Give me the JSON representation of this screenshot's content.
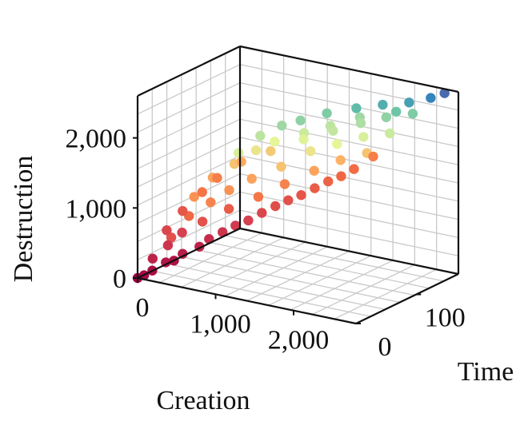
{
  "chart_data": {
    "type": "scatter",
    "projection": "3d",
    "title": "",
    "xlabel": "Creation",
    "ylabel": "Time",
    "zlabel": "Destruction",
    "xlim": [
      0,
      2800
    ],
    "ylim": [
      0,
      170
    ],
    "zlim": [
      0,
      2600
    ],
    "xticks": [
      {
        "value": 0,
        "label": "0"
      },
      {
        "value": 1000,
        "label": "1,000"
      },
      {
        "value": 2000,
        "label": "2,000"
      }
    ],
    "yticks": [
      {
        "value": 0,
        "label": "0"
      },
      {
        "value": 100,
        "label": "100"
      }
    ],
    "zticks": [
      {
        "value": 0,
        "label": "0"
      },
      {
        "value": 1000,
        "label": "1,000"
      },
      {
        "value": 2000,
        "label": "2,000"
      }
    ],
    "grid": true,
    "legend": "none",
    "colormap": "spectral (time: low = dark red, high = dark blue)",
    "colormap_stops": [
      "#9e0142",
      "#d53e4f",
      "#f46d43",
      "#fdae61",
      "#e6f598",
      "#abdda4",
      "#66c2a5",
      "#3288bd",
      "#5e4fa2"
    ],
    "series": [
      {
        "points": [
          [
            0,
            0,
            0
          ],
          [
            150,
            5,
            120
          ],
          [
            300,
            8,
            260
          ],
          [
            500,
            10,
            420
          ],
          [
            800,
            15,
            680
          ],
          [
            1100,
            20,
            920
          ],
          [
            1400,
            25,
            1150
          ],
          [
            1700,
            30,
            1380
          ],
          [
            2000,
            35,
            1600
          ],
          [
            2300,
            40,
            1820
          ],
          [
            100,
            12,
            250
          ],
          [
            250,
            18,
            450
          ],
          [
            400,
            22,
            650
          ],
          [
            600,
            30,
            820
          ],
          [
            900,
            35,
            1050
          ],
          [
            1200,
            45,
            1250
          ],
          [
            1500,
            50,
            1480
          ],
          [
            1800,
            60,
            1700
          ],
          [
            2100,
            65,
            1900
          ],
          [
            2400,
            70,
            2050
          ],
          [
            200,
            30,
            500
          ],
          [
            350,
            40,
            800
          ],
          [
            550,
            50,
            1000
          ],
          [
            750,
            55,
            1200
          ],
          [
            1000,
            60,
            1400
          ],
          [
            1300,
            70,
            1600
          ],
          [
            1600,
            80,
            1850
          ],
          [
            1900,
            85,
            2000
          ],
          [
            2200,
            90,
            2150
          ],
          [
            2500,
            95,
            2250
          ],
          [
            300,
            55,
            1000
          ],
          [
            500,
            60,
            1300
          ],
          [
            700,
            70,
            1500
          ],
          [
            900,
            80,
            1700
          ],
          [
            1100,
            85,
            1850
          ],
          [
            1400,
            95,
            2000
          ],
          [
            1700,
            100,
            2150
          ],
          [
            2000,
            110,
            2300
          ],
          [
            2300,
            115,
            2350
          ],
          [
            2600,
            120,
            2450
          ],
          [
            600,
            90,
            1550
          ],
          [
            800,
            100,
            1800
          ],
          [
            1000,
            110,
            1950
          ],
          [
            1200,
            115,
            2050
          ],
          [
            1500,
            120,
            2200
          ],
          [
            1800,
            130,
            2300
          ],
          [
            2100,
            135,
            2400
          ],
          [
            2400,
            140,
            2480
          ],
          [
            2600,
            150,
            2550
          ],
          [
            2700,
            160,
            2600
          ],
          [
            60,
            3,
            40
          ],
          [
            420,
            6,
            320
          ],
          [
            700,
            12,
            560
          ],
          [
            950,
            18,
            800
          ],
          [
            1250,
            22,
            1020
          ],
          [
            1550,
            28,
            1270
          ],
          [
            1850,
            32,
            1480
          ],
          [
            2150,
            38,
            1720
          ],
          [
            2450,
            42,
            1950
          ],
          [
            2650,
            48,
            2150
          ],
          [
            180,
            25,
            620
          ],
          [
            330,
            32,
            900
          ],
          [
            480,
            45,
            1150
          ],
          [
            650,
            48,
            1380
          ],
          [
            850,
            62,
            1600
          ],
          [
            1150,
            72,
            1780
          ],
          [
            1450,
            88,
            1950
          ],
          [
            1750,
            98,
            2100
          ],
          [
            2050,
            105,
            2250
          ],
          [
            2350,
            125,
            2400
          ]
        ]
      }
    ]
  }
}
